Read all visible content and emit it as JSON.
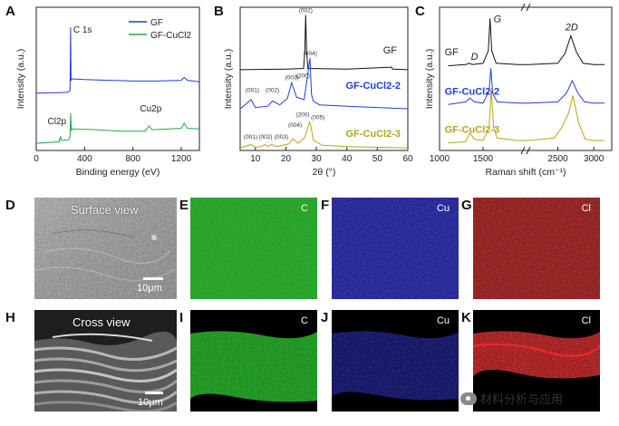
{
  "figure": {
    "panel_labels": {
      "A": "A",
      "B": "B",
      "C": "C",
      "D": "D",
      "E": "E",
      "F": "F",
      "G": "G",
      "H": "H",
      "I": "I",
      "J": "J",
      "K": "K"
    },
    "watermark": "材料分析与应用",
    "colors": {
      "GF": "#1f3fd6",
      "GF_CuCl2": "#1fa84a",
      "GF_CuCl2_2": "#1f3fd6",
      "GF_CuCl2_3": "#b8a318",
      "black": "#111111"
    }
  },
  "chart_data": [
    {
      "panel": "A",
      "type": "line",
      "xlabel": "Binding energy (eV)",
      "ylabel": "Intensity (a.u.)",
      "xlim": [
        0,
        1350
      ],
      "xticks": [
        "0",
        "400",
        "800",
        "1200"
      ],
      "xtick_values": [
        0,
        400,
        800,
        1200
      ],
      "legend": [
        "GF",
        "GF-CuCl2"
      ],
      "legend_position": "top-right",
      "annotations": [
        "C 1s",
        "Cl2p",
        "Cu2p"
      ],
      "series": [
        {
          "name": "GF",
          "color": "#1f3fd6",
          "x": [
            0,
            240,
            270,
            280,
            284,
            288,
            300,
            400,
            600,
            800,
            1000,
            1200,
            1225,
            1250,
            1350
          ],
          "y": [
            4.0,
            4.05,
            4.1,
            4.2,
            8.6,
            4.9,
            5.0,
            4.95,
            4.9,
            4.85,
            4.85,
            4.9,
            5.1,
            4.9,
            4.8
          ]
        },
        {
          "name": "GF-CuCl2",
          "color": "#1fa84a",
          "x": [
            0,
            190,
            199,
            210,
            270,
            280,
            284,
            290,
            300,
            500,
            700,
            900,
            933,
            960,
            1100,
            1200,
            1225,
            1250,
            1350
          ],
          "y": [
            0.5,
            0.6,
            0.95,
            0.7,
            0.75,
            1.0,
            2.6,
            1.4,
            1.5,
            1.45,
            1.35,
            1.35,
            1.7,
            1.45,
            1.5,
            1.55,
            1.9,
            1.55,
            1.5
          ]
        }
      ]
    },
    {
      "panel": "B",
      "type": "line",
      "xlabel": "2θ (°)",
      "ylabel": "Intensity (a.u.)",
      "xlim": [
        5,
        60
      ],
      "xticks": [
        "10",
        "20",
        "30",
        "40",
        "50",
        "60"
      ],
      "xtick_values": [
        10,
        20,
        30,
        40,
        50,
        60
      ],
      "series": [
        {
          "name": "GF",
          "color": "#111111",
          "x": [
            5,
            20,
            25.8,
            26.2,
            26.5,
            26.8,
            27.2,
            40,
            54.6,
            55,
            60
          ],
          "y": [
            6.2,
            6.25,
            6.3,
            7.6,
            10.4,
            7.6,
            6.3,
            6.25,
            6.4,
            6.25,
            6.2
          ],
          "peaks": [
            "(002)"
          ]
        },
        {
          "name": "GF-CuCl2-2",
          "color": "#1f3fd6",
          "x": [
            5,
            8.6,
            10,
            14,
            15.6,
            18,
            20.5,
            21.9,
            23.5,
            26,
            27.9,
            28.4,
            29,
            31,
            40,
            50,
            60
          ],
          "y": [
            3.2,
            3.9,
            3.3,
            3.4,
            3.8,
            3.5,
            4.0,
            5.2,
            4.1,
            3.9,
            7.1,
            4.3,
            3.8,
            3.5,
            3.4,
            3.3,
            3.2
          ],
          "peaks": [
            "(001)",
            "(002)",
            "(003)",
            "(004)",
            "(200)",
            "(005)"
          ]
        },
        {
          "name": "GF-CuCl2-3",
          "color": "#b8a318",
          "x": [
            5,
            8.4,
            10,
            12,
            13.2,
            14,
            15.3,
            17,
            21,
            22.3,
            24,
            26.2,
            27.8,
            28.2,
            29,
            32,
            40,
            60
          ],
          "y": [
            0.2,
            0.45,
            0.25,
            0.3,
            0.45,
            0.3,
            0.45,
            0.3,
            0.5,
            0.9,
            0.55,
            1.0,
            2.2,
            1.9,
            0.8,
            0.4,
            0.3,
            0.2
          ],
          "peaks": [
            "(001)",
            "(002)",
            "(003)",
            "(004)",
            "(200)"
          ]
        }
      ]
    },
    {
      "panel": "C",
      "type": "line",
      "xlabel": "Raman shift (cm⁻¹)",
      "ylabel": "Intensity (a.u.)",
      "xlim": [
        1000,
        3250
      ],
      "axis_break": true,
      "xticks": [
        "1000",
        "1500",
        "2500",
        "3000"
      ],
      "xtick_values": [
        1000,
        1500,
        2500,
        3000
      ],
      "annotations": [
        "G",
        "2D",
        "D"
      ],
      "series": [
        {
          "name": "GF",
          "color": "#111111",
          "x": [
            1100,
            1300,
            1340,
            1380,
            1500,
            1560,
            1580,
            1600,
            1650,
            1900,
            2100,
            2500,
            2600,
            2680,
            2760,
            2850,
            3000,
            3150
          ],
          "y": [
            6.8,
            6.9,
            7.0,
            6.9,
            7.0,
            8.0,
            10.6,
            8.0,
            7.0,
            6.9,
            6.9,
            7.0,
            7.8,
            9.2,
            7.9,
            7.0,
            6.9,
            6.9
          ]
        },
        {
          "name": "GF-CuCl2-2",
          "color": "#1f3fd6",
          "x": [
            1100,
            1300,
            1350,
            1400,
            1500,
            1570,
            1590,
            1610,
            1660,
            1900,
            2100,
            2500,
            2620,
            2700,
            2780,
            2870,
            3000,
            3150
          ],
          "y": [
            3.7,
            3.9,
            4.2,
            3.9,
            3.8,
            4.8,
            6.6,
            4.6,
            3.9,
            3.8,
            3.8,
            3.9,
            4.6,
            5.6,
            4.6,
            3.9,
            3.8,
            3.8
          ]
        },
        {
          "name": "GF-CuCl2-3",
          "color": "#b8a318",
          "x": [
            1100,
            1300,
            1350,
            1400,
            1500,
            1570,
            1595,
            1620,
            1660,
            1900,
            2100,
            2450,
            2550,
            2650,
            2710,
            2790,
            2880,
            3000,
            3150
          ],
          "y": [
            0.6,
            0.7,
            1.4,
            0.9,
            0.8,
            1.8,
            5.0,
            1.9,
            1.0,
            0.8,
            0.8,
            1.0,
            1.8,
            3.0,
            4.4,
            2.2,
            0.9,
            0.8,
            0.8
          ]
        }
      ]
    }
  ],
  "images": {
    "D": {
      "caption": "Surface view",
      "scale": "10μm"
    },
    "E": {
      "element": "C",
      "color": "#22b418"
    },
    "F": {
      "element": "Cu",
      "color": "#2626c8"
    },
    "G": {
      "element": "Cl",
      "color": "#c81e1e"
    },
    "H": {
      "caption": "Cross view",
      "scale": "10μm"
    },
    "I": {
      "element": "C",
      "color": "#22b418"
    },
    "J": {
      "element": "Cu",
      "color": "#2626c8"
    },
    "K": {
      "element": "Cl",
      "color": "#c81e1e"
    }
  }
}
